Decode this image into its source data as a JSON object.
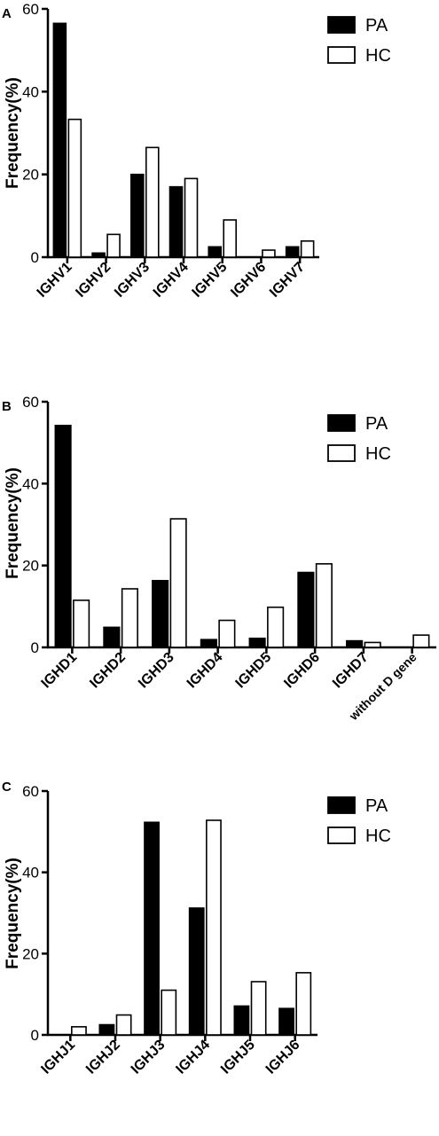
{
  "chart_data": [
    {
      "panel_label": "A",
      "type": "bar",
      "categories": [
        "IGHV1",
        "IGHV2",
        "IGHV3",
        "IGHV4",
        "IGHV5",
        "IGHV6",
        "IGHV7"
      ],
      "series": [
        {
          "name": "PA",
          "values": [
            56.5,
            1.0,
            20.0,
            17.0,
            2.5,
            0.0,
            2.5
          ]
        },
        {
          "name": "HC",
          "values": [
            33.3,
            5.5,
            26.5,
            19.0,
            9.0,
            1.7,
            3.9
          ]
        }
      ],
      "ylabel": "Frequency(%)",
      "yticks": [
        0,
        20,
        40,
        60
      ],
      "ylim": [
        0,
        60
      ],
      "legend": "top-right"
    },
    {
      "panel_label": "B",
      "type": "bar",
      "categories": [
        "IGHD1",
        "IGHD2",
        "IGHD3",
        "IGHD4",
        "IGHD5",
        "IGHD6",
        "IGHD7",
        "without D gene"
      ],
      "series": [
        {
          "name": "PA",
          "values": [
            54.2,
            4.9,
            16.3,
            1.9,
            2.2,
            18.3,
            1.6,
            0.0
          ]
        },
        {
          "name": "HC",
          "values": [
            11.5,
            14.3,
            31.4,
            6.6,
            9.8,
            20.4,
            1.2,
            3.0
          ]
        }
      ],
      "ylabel": "Frequency(%)",
      "yticks": [
        0,
        20,
        40,
        60
      ],
      "ylim": [
        0,
        60
      ],
      "legend": "top-right"
    },
    {
      "panel_label": "C",
      "type": "bar",
      "categories": [
        "IGHJ1",
        "IGHJ2",
        "IGHJ3",
        "IGHJ4",
        "IGHJ5",
        "IGHJ6"
      ],
      "series": [
        {
          "name": "PA",
          "values": [
            0.0,
            2.5,
            52.3,
            31.2,
            7.1,
            6.5
          ]
        },
        {
          "name": "HC",
          "values": [
            2.0,
            4.9,
            11.0,
            52.8,
            13.1,
            15.3
          ]
        }
      ],
      "ylabel": "Frequency(%)",
      "yticks": [
        0,
        20,
        40,
        60
      ],
      "ylim": [
        0,
        60
      ],
      "legend": "top-right"
    }
  ],
  "colors": {
    "PA": "#000000",
    "HC": "#ffffff",
    "axis": "#000000"
  }
}
